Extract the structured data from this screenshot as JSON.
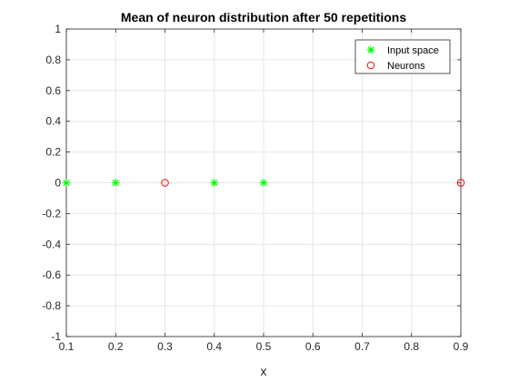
{
  "chart_data": {
    "type": "scatter",
    "title": "Mean of neuron distribution after 50 repetitions",
    "xlabel": "x",
    "ylabel": "",
    "xlim": [
      0.1,
      0.9
    ],
    "ylim": [
      -1,
      1
    ],
    "xticks": [
      0.1,
      0.2,
      0.3,
      0.4,
      0.5,
      0.6,
      0.7,
      0.8,
      0.9
    ],
    "xtick_labels": [
      "0.1",
      "0.2",
      "0.3",
      "0.4",
      "0.5",
      "0.6",
      "0.7",
      "0.8",
      "0.9"
    ],
    "yticks": [
      1,
      0.8,
      0.6,
      0.4,
      0.2,
      0,
      -0.2,
      -0.4,
      -0.6,
      -0.8,
      -1
    ],
    "ytick_labels": [
      "1",
      "0.8",
      "0.6",
      "0.4",
      "0.2",
      "0",
      "-0.2",
      "-0.4",
      "-0.6",
      "-0.8",
      "-1"
    ],
    "grid": true,
    "legend_position": "top-right",
    "series": [
      {
        "name": "Input space",
        "marker": "asterisk",
        "color": "#00ff00",
        "points": [
          [
            0.1,
            0
          ],
          [
            0.2,
            0
          ],
          [
            0.4,
            0
          ],
          [
            0.5,
            0
          ]
        ]
      },
      {
        "name": "Neurons",
        "marker": "circle",
        "color": "#ff0000",
        "points": [
          [
            0.3,
            0
          ],
          [
            0.9,
            0
          ]
        ]
      }
    ]
  }
}
